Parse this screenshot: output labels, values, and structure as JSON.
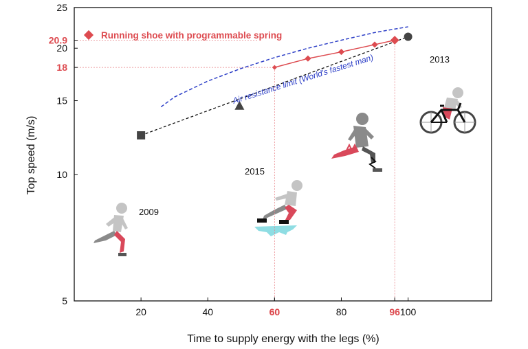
{
  "chart_data": {
    "type": "line",
    "xlabel": "Time to supply energy with the legs  (%)",
    "ylabel": "Top speed (m/s)",
    "xlim": [
      0,
      125
    ],
    "ylim": [
      5,
      25
    ],
    "y_scale": "log",
    "x_ticks": [
      "20",
      "40",
      "60",
      "80",
      "100"
    ],
    "x_highlight_ticks": [
      "60",
      "96"
    ],
    "y_ticks": [
      "5",
      "10",
      "15",
      "20",
      "25"
    ],
    "y_highlight_ticks": [
      "18",
      "20.9"
    ],
    "legend": {
      "label": "Running shoe with programmable spring",
      "placement": "top-left"
    },
    "series": [
      {
        "name": "Running shoe with programmable spring",
        "marker": "diamond",
        "x": [
          60,
          70,
          80,
          90,
          96
        ],
        "y": [
          18.0,
          18.9,
          19.6,
          20.4,
          20.9
        ]
      }
    ],
    "records": [
      {
        "label": "2009",
        "marker": "square",
        "x": 20,
        "y": 12.4
      },
      {
        "label": "2015",
        "marker": "triangle",
        "x": 49.5,
        "y": 14.6
      },
      {
        "label": "2013",
        "marker": "circle",
        "x": 100,
        "y": 21.3
      }
    ],
    "trend_line": {
      "x": [
        20,
        100
      ],
      "y": [
        12.4,
        21.3
      ]
    },
    "air_limit": {
      "label": "Air resistance limit (World's fastest man)",
      "x": [
        26,
        30,
        40,
        50,
        60,
        70,
        80,
        90,
        100
      ],
      "y": [
        14.5,
        15.3,
        16.7,
        17.9,
        19.0,
        20.0,
        20.9,
        21.8,
        22.5
      ]
    },
    "colors": {
      "shoe": "#dd4b50",
      "limit": "#2d3fc7",
      "record": "#444444",
      "guide": "#e8858a",
      "water": "#8fdde3"
    },
    "icons": [
      "runner-icon",
      "skater-icon",
      "spring-runner-icon",
      "cyclist-icon"
    ]
  }
}
